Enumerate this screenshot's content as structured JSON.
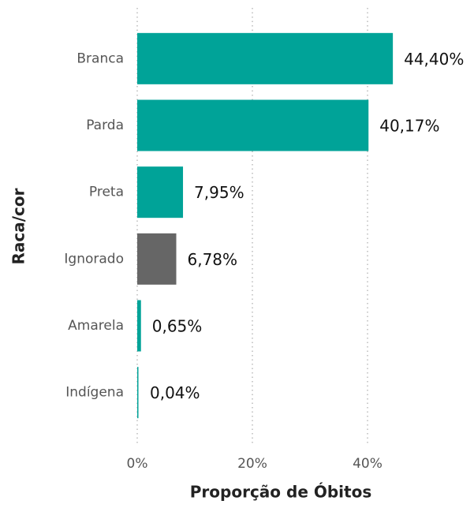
{
  "chart_data": {
    "type": "bar",
    "orientation": "horizontal",
    "x_label": "Proporção de Óbitos",
    "y_label": "Raca/cor",
    "categories": [
      "Branca",
      "Parda",
      "Preta",
      "Ignorado",
      "Amarela",
      "Indígena"
    ],
    "values": [
      44.4,
      40.17,
      7.95,
      6.78,
      0.65,
      0.04
    ],
    "value_labels": [
      "44,40%",
      "40,17%",
      "7,95%",
      "6,78%",
      "0,65%",
      "0,04%"
    ],
    "colors": [
      "#00a398",
      "#00a398",
      "#00a398",
      "#666666",
      "#00a398",
      "#00a398"
    ],
    "xlim": [
      0,
      50
    ],
    "xticks": [
      {
        "value": 0,
        "label": "0%"
      },
      {
        "value": 20,
        "label": "20%"
      },
      {
        "value": 40,
        "label": "40%"
      }
    ],
    "grid": true
  }
}
